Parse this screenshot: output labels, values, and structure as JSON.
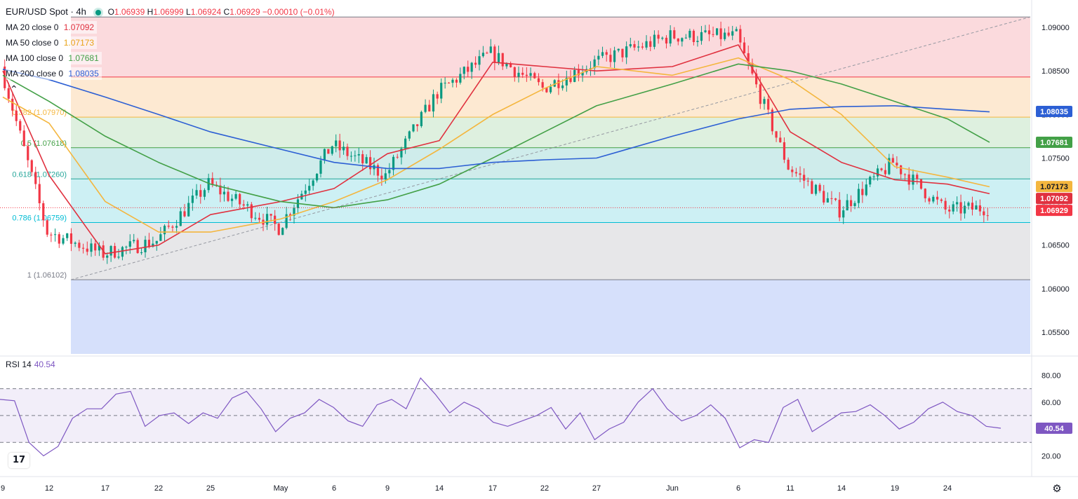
{
  "header": {
    "symbol": "EUR/USD Spot · 4h",
    "open_label": "O",
    "open": "1.06939",
    "high_label": "H",
    "high": "1.06999",
    "low_label": "L",
    "low": "1.06924",
    "close_label": "C",
    "close": "1.06929",
    "change": "−0.00010 (−0.01%)"
  },
  "indicators": [
    {
      "label": "MA 20 close 0",
      "value": "1.07092",
      "color": "#e0313f"
    },
    {
      "label": "MA 50 close 0",
      "value": "1.07173",
      "color": "#f4b63e"
    },
    {
      "label": "MA 100 close 0",
      "value": "1.07681",
      "color": "#43a047"
    },
    {
      "label": "MA 200 close 0",
      "value": "1.08035",
      "color": "#2c5fd4"
    }
  ],
  "rsi": {
    "label": "RSI 14",
    "value": "40.54",
    "color": "#7e57c2"
  },
  "colors": {
    "up": "#089981",
    "down": "#f23645",
    "ma20": "#e0313f",
    "ma50": "#f4b63e",
    "ma100": "#43a047",
    "ma200": "#2c5fd4",
    "rsi": "#7e57c2"
  },
  "icons": {
    "logo": "tradingview-logo-icon",
    "settings": "gear-icon",
    "collapse": "chevron-up-icon"
  },
  "logo_text": "17",
  "settings_glyph": "⚙",
  "collapse_glyph": "⌃",
  "chart_data": [
    {
      "type": "candlestick",
      "title": "EUR/USD Spot · 4h",
      "x_ticks": [
        "9",
        "12",
        "17",
        "22",
        "25",
        "May",
        "6",
        "9",
        "14",
        "17",
        "22",
        "27",
        "Jun",
        "6",
        "11",
        "14",
        "19",
        "24"
      ],
      "y_ticks": [
        "1.09000",
        "1.08500",
        "1.08000",
        "1.07500",
        "1.07000",
        "1.06500",
        "1.06000",
        "1.05500"
      ],
      "ylim": [
        1.0525,
        1.0917
      ],
      "grid": false,
      "price_labels": [
        {
          "value": 1.08035,
          "text": "1.08035",
          "color": "#2c5fd4"
        },
        {
          "value": 1.07681,
          "text": "1.07681",
          "color": "#43a047"
        },
        {
          "value": 1.07173,
          "text": "1.07173",
          "color": "#f4b63e"
        },
        {
          "value": 1.07092,
          "text": "1.07092",
          "color": "#e0313f"
        },
        {
          "value": 1.06929,
          "text": "1.06929",
          "color": "#f23645"
        }
      ],
      "fibonacci": {
        "levels": [
          {
            "ratio_label": "0.382 (1.07970)",
            "value": 1.0797,
            "color": "#f4b63e"
          },
          {
            "ratio_label": "0.5 (1.07618)",
            "value": 1.07618,
            "color": "#43a047"
          },
          {
            "ratio_label": "0.618 (1.07260)",
            "value": 1.0726,
            "color": "#26a69a"
          },
          {
            "ratio_label": "0.786 (1.06759)",
            "value": 1.06759,
            "color": "#00bcd4"
          },
          {
            "ratio_label": "1 (1.06102)",
            "value": 1.06102,
            "color": "#787b86"
          }
        ],
        "top": 1.0912,
        "zone_fills": [
          "#fbdadd",
          "#fde9d2",
          "#def0df",
          "#cfeceb",
          "#cdf0f4",
          "#e7e7e9",
          "#d6e0fb"
        ]
      },
      "anchors": [
        {
          "label": "9",
          "price": 1.0855
        },
        {
          "label": "12",
          "price": 1.0665
        },
        {
          "label": "17",
          "price": 1.064
        },
        {
          "label": "22",
          "price": 1.0655
        },
        {
          "label": "25",
          "price": 1.072
        },
        {
          "label": "May",
          "price": 1.067
        },
        {
          "label": "6",
          "price": 1.0765
        },
        {
          "label": "9",
          "price": 1.073
        },
        {
          "label": "14",
          "price": 1.0825
        },
        {
          "label": "17",
          "price": 1.087
        },
        {
          "label": "22",
          "price": 1.083
        },
        {
          "label": "27",
          "price": 1.086
        },
        {
          "label": "Jun",
          "price": 1.089
        },
        {
          "label": "6",
          "price": 1.089
        },
        {
          "label": "11",
          "price": 1.074
        },
        {
          "label": "14",
          "price": 1.069
        },
        {
          "label": "19",
          "price": 1.0745
        },
        {
          "label": "24",
          "price": 1.069
        },
        {
          "label": "end",
          "price": 1.06929
        }
      ],
      "moving_averages": [
        {
          "name": "MA 20",
          "color": "#e0313f",
          "points": [
            [
              0,
              1.085
            ],
            [
              1,
              1.073
            ],
            [
              2,
              1.064
            ],
            [
              3,
              1.065
            ],
            [
              4,
              1.0685
            ],
            [
              5,
              1.07
            ],
            [
              6,
              1.0715
            ],
            [
              7,
              1.0755
            ],
            [
              8,
              1.077
            ],
            [
              9,
              1.086
            ],
            [
              10,
              1.0855
            ],
            [
              11,
              1.085
            ],
            [
              12,
              1.0855
            ],
            [
              13,
              1.088
            ],
            [
              14,
              1.078
            ],
            [
              15,
              1.0745
            ],
            [
              16,
              1.0725
            ],
            [
              17,
              1.072
            ],
            [
              18,
              1.0709
            ]
          ]
        },
        {
          "name": "MA 50",
          "color": "#f4b63e",
          "points": [
            [
              0,
              1.082
            ],
            [
              1,
              1.079
            ],
            [
              2,
              1.07
            ],
            [
              3,
              1.0665
            ],
            [
              4,
              1.0665
            ],
            [
              5,
              1.068
            ],
            [
              6,
              1.07
            ],
            [
              7,
              1.0725
            ],
            [
              8,
              1.076
            ],
            [
              9,
              1.08
            ],
            [
              10,
              1.083
            ],
            [
              11,
              1.0855
            ],
            [
              12,
              1.0845
            ],
            [
              13,
              1.0865
            ],
            [
              14,
              1.084
            ],
            [
              15,
              1.08
            ],
            [
              16,
              1.074
            ],
            [
              17,
              1.0728
            ],
            [
              18,
              1.0717
            ]
          ]
        },
        {
          "name": "MA 100",
          "color": "#43a047",
          "points": [
            [
              0,
              1.0845
            ],
            [
              1,
              1.0815
            ],
            [
              2,
              1.0775
            ],
            [
              3,
              1.0745
            ],
            [
              4,
              1.072
            ],
            [
              5,
              1.07
            ],
            [
              6,
              1.0693
            ],
            [
              7,
              1.0702
            ],
            [
              8,
              1.072
            ],
            [
              9,
              1.075
            ],
            [
              10,
              1.078
            ],
            [
              11,
              1.081
            ],
            [
              12,
              1.0835
            ],
            [
              13,
              1.0858
            ],
            [
              14,
              1.085
            ],
            [
              15,
              1.0835
            ],
            [
              16,
              1.0815
            ],
            [
              17,
              1.0795
            ],
            [
              18,
              1.0768
            ]
          ]
        },
        {
          "name": "MA 200",
          "color": "#2c5fd4",
          "points": [
            [
              0,
              1.0852
            ],
            [
              1,
              1.084
            ],
            [
              2,
              1.082
            ],
            [
              3,
              1.08
            ],
            [
              4,
              1.078
            ],
            [
              5,
              1.076
            ],
            [
              6,
              1.0745
            ],
            [
              7,
              1.0738
            ],
            [
              8,
              1.0738
            ],
            [
              9,
              1.0745
            ],
            [
              10,
              1.0748
            ],
            [
              11,
              1.075
            ],
            [
              12,
              1.0775
            ],
            [
              13,
              1.0795
            ],
            [
              14,
              1.0806
            ],
            [
              15,
              1.0809
            ],
            [
              16,
              1.081
            ],
            [
              17,
              1.0806
            ],
            [
              18,
              1.0803
            ]
          ]
        }
      ]
    },
    {
      "type": "line",
      "title": "RSI 14",
      "x_ticks": [
        "9",
        "12",
        "17",
        "22",
        "25",
        "May",
        "6",
        "9",
        "14",
        "17",
        "22",
        "27",
        "Jun",
        "6",
        "11",
        "14",
        "19",
        "24"
      ],
      "y_ticks": [
        "80.00",
        "60.00",
        "40.00",
        "20.00"
      ],
      "ylim": [
        15,
        87
      ],
      "bands": {
        "upper": 70,
        "middle": 50,
        "lower": 30
      },
      "last_value": 40.54,
      "series": [
        {
          "color": "#7e57c2",
          "values": [
            62,
            61,
            30,
            20,
            27,
            48,
            55,
            55,
            66,
            68,
            42,
            50,
            52,
            44,
            52,
            48,
            63,
            68,
            55,
            38,
            48,
            52,
            62,
            56,
            46,
            42,
            58,
            62,
            55,
            78,
            66,
            52,
            60,
            55,
            45,
            42,
            46,
            50,
            56,
            40,
            52,
            32,
            40,
            45,
            60,
            70,
            55,
            46,
            50,
            58,
            48,
            26,
            32,
            30,
            56,
            62,
            38,
            45,
            52,
            53,
            58,
            50,
            40,
            45,
            55,
            60,
            53,
            50,
            42,
            40.54
          ]
        }
      ]
    }
  ]
}
